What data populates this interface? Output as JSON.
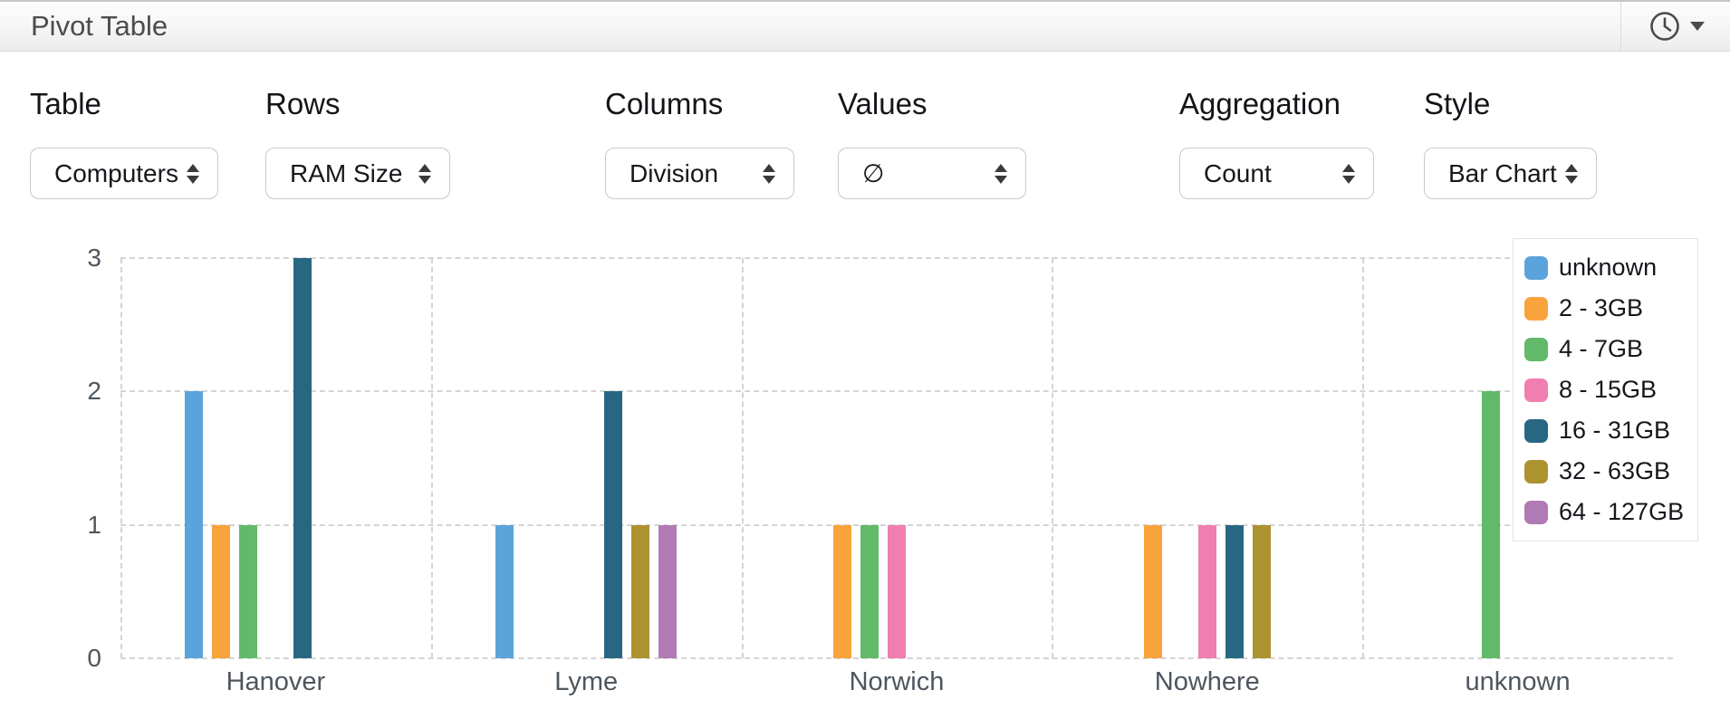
{
  "header": {
    "title": "Pivot Table"
  },
  "controls": [
    {
      "id": "table",
      "label": "Table",
      "value": "Computers"
    },
    {
      "id": "rows",
      "label": "Rows",
      "value": "RAM Size"
    },
    {
      "id": "columns",
      "label": "Columns",
      "value": "Division"
    },
    {
      "id": "values",
      "label": "Values",
      "value": "∅"
    },
    {
      "id": "aggregation",
      "label": "Aggregation",
      "value": "Count"
    },
    {
      "id": "style",
      "label": "Style",
      "value": "Bar Chart"
    }
  ],
  "chart_data": {
    "type": "bar",
    "title": "",
    "xlabel": "",
    "ylabel": "",
    "categories": [
      "Hanover",
      "Lyme",
      "Norwich",
      "Nowhere",
      "unknown"
    ],
    "series": [
      {
        "name": "unknown",
        "color": "#5BA4DB",
        "values": [
          2,
          1,
          0,
          0,
          0
        ]
      },
      {
        "name": "2 - 3GB",
        "color": "#F8A33C",
        "values": [
          1,
          0,
          1,
          1,
          0
        ]
      },
      {
        "name": "4 - 7GB",
        "color": "#62B969",
        "values": [
          1,
          0,
          1,
          0,
          2
        ]
      },
      {
        "name": "8 - 15GB",
        "color": "#F07EB1",
        "values": [
          0,
          0,
          1,
          1,
          0
        ]
      },
      {
        "name": "16 - 31GB",
        "color": "#276782",
        "values": [
          3,
          2,
          0,
          1,
          0
        ]
      },
      {
        "name": "32 - 63GB",
        "color": "#AD9230",
        "values": [
          0,
          1,
          0,
          1,
          0
        ]
      },
      {
        "name": "64 - 127GB",
        "color": "#B07AB5",
        "values": [
          0,
          1,
          0,
          0,
          0
        ]
      }
    ],
    "ylim": [
      0,
      3
    ],
    "yticks": [
      0,
      1,
      2,
      3
    ],
    "grid": "dashed",
    "gridline_color": "#d4d4d4",
    "axis_text_color": "#4e565e",
    "legend_position": "top-right"
  }
}
